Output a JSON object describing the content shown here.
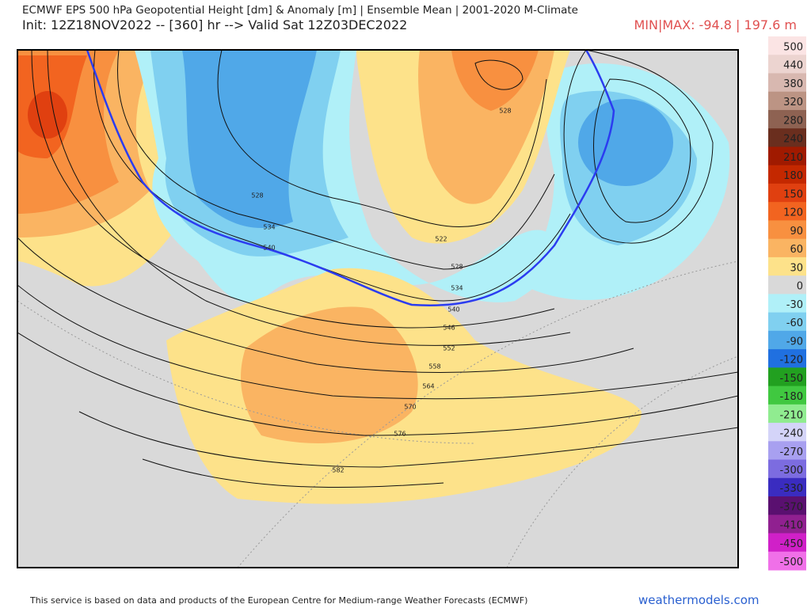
{
  "header": {
    "title": "ECMWF EPS 500 hPa Geopotential Height [dm] & Anomaly [m] | Ensemble Mean | 2001-2020 M-Climate",
    "init": "Init: 12Z18NOV2022 -- [360] hr --> Valid Sat 12Z03DEC2022",
    "minmax": "MIN|MAX: -94.8 | 197.6 m"
  },
  "colorbar": {
    "levels": [
      {
        "label": "500",
        "color": "#fbe4e4"
      },
      {
        "label": "440",
        "color": "#ecd4d0"
      },
      {
        "label": "380",
        "color": "#d8b8b0"
      },
      {
        "label": "320",
        "color": "#bc9484"
      },
      {
        "label": "280",
        "color": "#8e6252"
      },
      {
        "label": "240",
        "color": "#6a2e1e"
      },
      {
        "label": "210",
        "color": "#a01a00"
      },
      {
        "label": "180",
        "color": "#c42800"
      },
      {
        "label": "150",
        "color": "#e04010"
      },
      {
        "label": "120",
        "color": "#f26420"
      },
      {
        "label": "90",
        "color": "#f89040"
      },
      {
        "label": "60",
        "color": "#fab462"
      },
      {
        "label": "30",
        "color": "#fde28a"
      },
      {
        "label": "0",
        "color": "#d9d9d9"
      },
      {
        "label": "-30",
        "color": "#b0f0f8"
      },
      {
        "label": "-60",
        "color": "#80d0f0"
      },
      {
        "label": "-90",
        "color": "#50a8e8"
      },
      {
        "label": "-120",
        "color": "#2070e0"
      },
      {
        "label": "-150",
        "color": "#22a020"
      },
      {
        "label": "-180",
        "color": "#40c840"
      },
      {
        "label": "-210",
        "color": "#90ec90"
      },
      {
        "label": "-240",
        "color": "#d4d4f8"
      },
      {
        "label": "-270",
        "color": "#a8a0f0"
      },
      {
        "label": "-300",
        "color": "#7c6ce0"
      },
      {
        "label": "-330",
        "color": "#3a2cc0"
      },
      {
        "label": "-370",
        "color": "#5a1070"
      },
      {
        "label": "-410",
        "color": "#902090"
      },
      {
        "label": "-450",
        "color": "#d020c8"
      },
      {
        "label": "-500",
        "color": "#f070e8"
      }
    ]
  },
  "contour_labels": [
    "528",
    "522",
    "528",
    "534",
    "540",
    "546",
    "552",
    "558",
    "564",
    "570",
    "576",
    "582",
    "528",
    "534",
    "540"
  ],
  "footer": {
    "notice": "This service is based on data and products of the European Centre for Medium-range Weather Forecasts (ECMWF)",
    "brand": "weathermodels.com"
  }
}
